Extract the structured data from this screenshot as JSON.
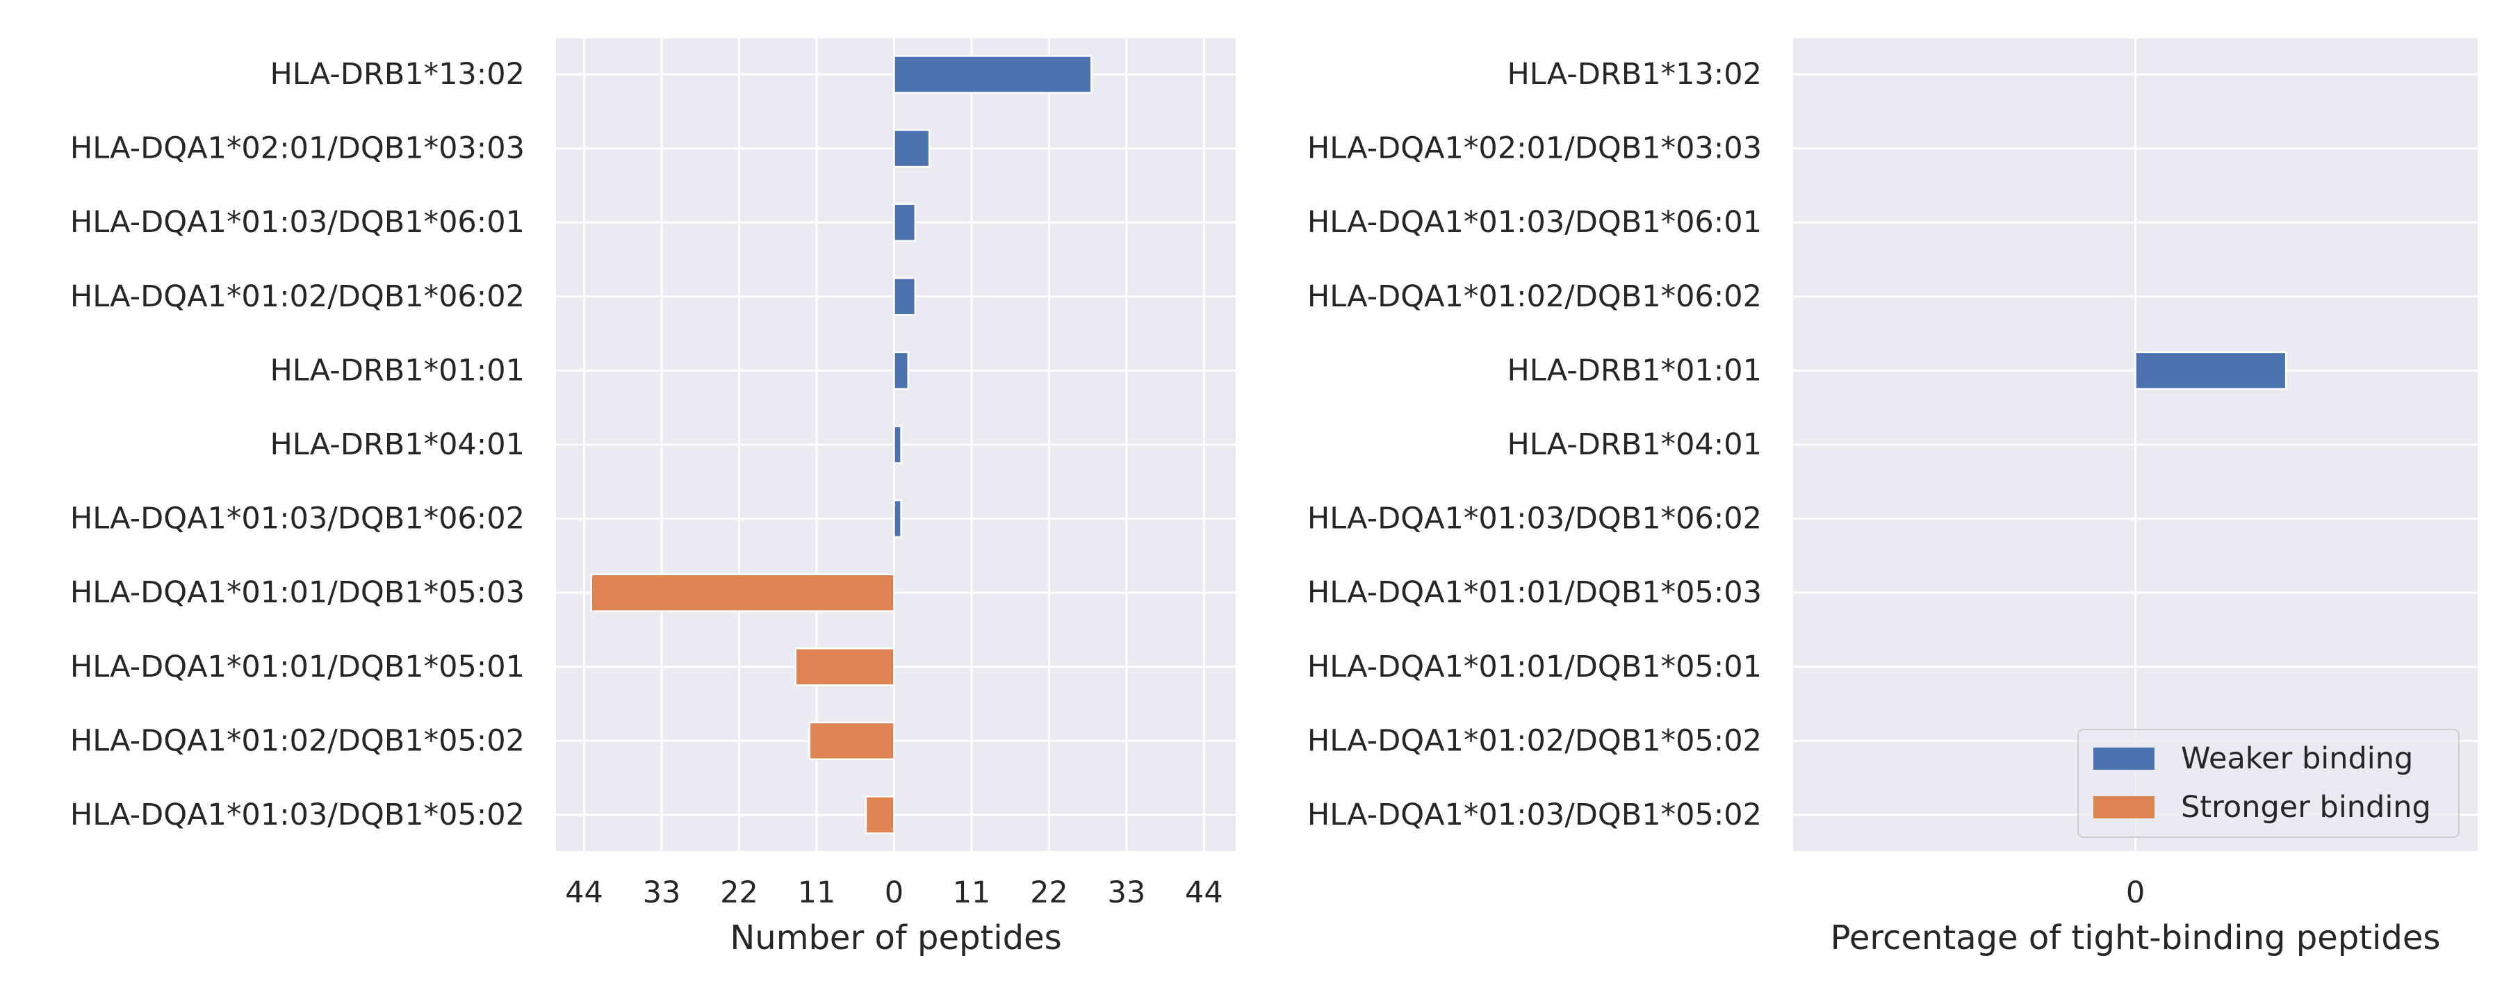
{
  "chart_data": [
    {
      "type": "bar",
      "orientation": "horizontal",
      "categories": [
        "HLA-DRB1*13:02",
        "HLA-DQA1*02:01/DQB1*03:03",
        "HLA-DQA1*01:03/DQB1*06:01",
        "HLA-DQA1*01:02/DQB1*06:02",
        "HLA-DRB1*01:01",
        "HLA-DRB1*04:01",
        "HLA-DQA1*01:03/DQB1*06:02",
        "HLA-DQA1*01:01/DQB1*05:03",
        "HLA-DQA1*01:01/DQB1*05:01",
        "HLA-DQA1*01:02/DQB1*05:02",
        "HLA-DQA1*01:03/DQB1*05:02"
      ],
      "series": [
        {
          "name": "Weaker binding",
          "color": "#4C72B0",
          "values": [
            28,
            5,
            3,
            3,
            2,
            1,
            1,
            0,
            0,
            0,
            0
          ]
        },
        {
          "name": "Stronger binding",
          "color": "#DD8452",
          "values": [
            0,
            0,
            0,
            0,
            0,
            0,
            0,
            43,
            14,
            12,
            4
          ]
        }
      ],
      "stronger_drawn_negative": true,
      "xticks": [
        -44,
        -33,
        -22,
        -11,
        0,
        11,
        22,
        33,
        44
      ],
      "xtick_labels": [
        "44",
        "33",
        "22",
        "11",
        "0",
        "11",
        "22",
        "33",
        "44"
      ],
      "xlim": [
        -48,
        48.5
      ],
      "xlabel": "Number of peptides",
      "ylabel": "",
      "grid": true,
      "background": "#EAEAF2"
    },
    {
      "type": "bar",
      "orientation": "horizontal",
      "categories": [
        "HLA-DRB1*13:02",
        "HLA-DQA1*02:01/DQB1*03:03",
        "HLA-DQA1*01:03/DQB1*06:01",
        "HLA-DQA1*01:02/DQB1*06:02",
        "HLA-DRB1*01:01",
        "HLA-DRB1*04:01",
        "HLA-DQA1*01:03/DQB1*06:02",
        "HLA-DQA1*01:01/DQB1*05:03",
        "HLA-DQA1*01:01/DQB1*05:01",
        "HLA-DQA1*01:02/DQB1*05:02",
        "HLA-DQA1*01:03/DQB1*05:02"
      ],
      "series": [
        {
          "name": "Weaker binding",
          "color": "#4C72B0",
          "values": [
            0,
            0,
            0,
            0,
            0.22,
            0,
            0,
            0,
            0,
            0,
            0
          ]
        },
        {
          "name": "Stronger binding",
          "color": "#DD8452",
          "values": [
            0,
            0,
            0,
            0,
            0,
            0,
            0,
            0,
            0,
            0,
            0
          ]
        }
      ],
      "xticks": [
        0
      ],
      "xtick_labels": [
        "0"
      ],
      "xlim": [
        -0.5,
        0.5
      ],
      "xlabel": "Percentage of tight-binding peptides",
      "ylabel": "",
      "grid": true,
      "background": "#EAEAF2",
      "legend": {
        "position": "lower-right",
        "entries": [
          "Weaker binding",
          "Stronger binding"
        ]
      }
    }
  ]
}
